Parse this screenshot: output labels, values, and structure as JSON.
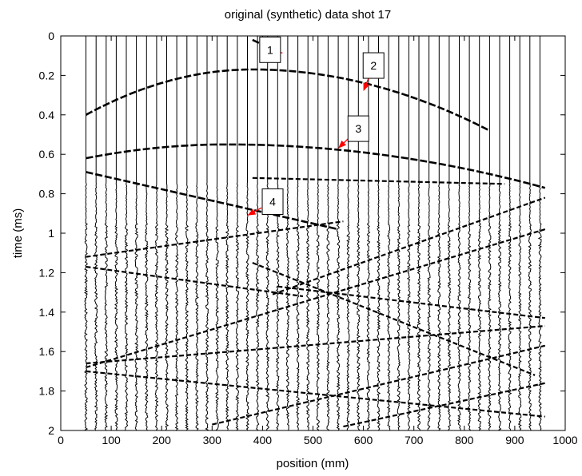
{
  "chart_data": {
    "type": "wiggle",
    "title": "original (synthetic) data shot 17",
    "xlabel": "position (mm)",
    "ylabel": "time (ms)",
    "xlim": [
      0,
      1000
    ],
    "ylim": [
      0,
      2
    ],
    "y_reversed": true,
    "x_ticks": [
      "0",
      "100",
      "200",
      "300",
      "400",
      "500",
      "600",
      "700",
      "800",
      "900",
      "1000"
    ],
    "y_ticks": [
      "0",
      "0.2",
      "0.4",
      "0.6",
      "0.8",
      "1",
      "1.2",
      "1.4",
      "1.6",
      "1.8",
      "2"
    ],
    "grid": false,
    "trace_color": "#000000",
    "annotation_color": "#ff0000",
    "shot_position": 380,
    "trace_positions": [
      50,
      960
    ],
    "trace_spacing": 20,
    "events": [
      {
        "label": "1",
        "type": "direct",
        "x": [
          380,
          430
        ],
        "t": [
          0.02,
          0.08
        ]
      },
      {
        "label": "2",
        "type": "hyperbola",
        "apex_x": 380,
        "apex_t": 0.17,
        "ends": [
          [
            50,
            0.4
          ],
          [
            850,
            0.48
          ]
        ]
      },
      {
        "label": "3",
        "type": "hyperbola",
        "apex_x": 330,
        "apex_t": 0.55,
        "ends": [
          [
            50,
            0.62
          ],
          [
            960,
            0.77
          ]
        ]
      },
      {
        "label": "4",
        "type": "linear",
        "x": [
          50,
          550
        ],
        "t": [
          0.69,
          0.98
        ]
      },
      {
        "type": "linear",
        "x": [
          380,
          880
        ],
        "t": [
          0.72,
          0.75
        ]
      },
      {
        "type": "linear",
        "x": [
          50,
          560
        ],
        "t": [
          1.12,
          0.94
        ]
      },
      {
        "type": "linear",
        "x": [
          50,
          480
        ],
        "t": [
          1.17,
          1.32
        ]
      },
      {
        "type": "linear",
        "x": [
          420,
          960
        ],
        "t": [
          1.31,
          0.82
        ]
      },
      {
        "type": "linear",
        "x": [
          50,
          960
        ],
        "t": [
          1.68,
          0.98
        ]
      },
      {
        "type": "linear",
        "x": [
          430,
          960
        ],
        "t": [
          1.27,
          1.43
        ]
      },
      {
        "type": "linear",
        "x": [
          380,
          940
        ],
        "t": [
          1.15,
          1.72
        ]
      },
      {
        "type": "linear",
        "x": [
          50,
          960
        ],
        "t": [
          1.66,
          1.47
        ]
      },
      {
        "type": "linear",
        "x": [
          50,
          960
        ],
        "t": [
          1.7,
          1.93
        ]
      },
      {
        "type": "linear",
        "x": [
          300,
          960
        ],
        "t": [
          1.97,
          1.57
        ]
      },
      {
        "type": "linear",
        "x": [
          560,
          960
        ],
        "t": [
          1.98,
          1.76
        ]
      }
    ]
  },
  "annotations": [
    {
      "label": "1",
      "box_at": [
        415,
        0.07
      ],
      "arrow_to": [
        430,
        0.08
      ]
    },
    {
      "label": "2",
      "box_at": [
        620,
        0.15
      ],
      "arrow_to": [
        600,
        0.28
      ]
    },
    {
      "label": "3",
      "box_at": [
        590,
        0.47
      ],
      "arrow_to": [
        550,
        0.57
      ]
    },
    {
      "label": "4",
      "box_at": [
        420,
        0.84
      ],
      "arrow_to": [
        370,
        0.91
      ]
    }
  ]
}
